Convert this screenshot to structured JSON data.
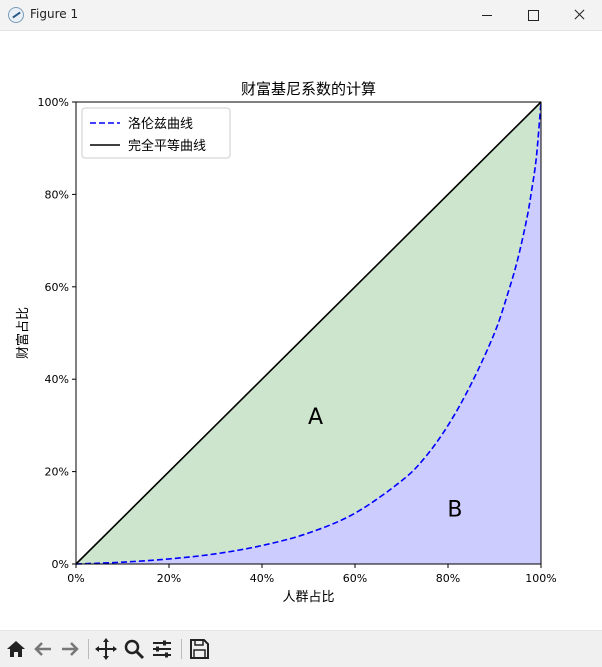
{
  "window": {
    "title": "Figure 1",
    "minimize_icon": "minimize-icon",
    "maximize_icon": "maximize-icon",
    "close_icon": "close-icon"
  },
  "toolbar": {
    "tools": [
      "home-icon",
      "back-arrow-icon",
      "forward-arrow-icon",
      "pan-icon",
      "zoom-icon",
      "configure-subplots-icon",
      "save-icon"
    ]
  },
  "colors": {
    "lorenz": "#0000ff",
    "equality": "#000000",
    "area_a": "#cce5cc",
    "area_b": "#ccccff"
  },
  "chart_data": {
    "type": "line",
    "title": "财富基尼系数的计算",
    "xlabel": "人群占比",
    "ylabel": "财富占比",
    "xlim": [
      0,
      1
    ],
    "ylim": [
      0,
      1
    ],
    "xticks": [
      "0%",
      "20%",
      "40%",
      "60%",
      "80%",
      "100%"
    ],
    "yticks": [
      "0%",
      "20%",
      "40%",
      "60%",
      "80%",
      "100%"
    ],
    "legend_position": "upper-left",
    "grid": false,
    "series": [
      {
        "name": "洛伦兹曲线",
        "style": "dashed",
        "x": [
          0,
          0.1,
          0.2,
          0.3,
          0.4,
          0.5,
          0.6,
          0.7,
          0.75,
          0.8,
          0.85,
          0.9,
          0.93,
          0.95,
          0.97,
          0.98,
          0.99,
          1.0
        ],
        "y": [
          0,
          0.004,
          0.011,
          0.022,
          0.04,
          0.067,
          0.11,
          0.18,
          0.23,
          0.3,
          0.39,
          0.5,
          0.59,
          0.66,
          0.75,
          0.81,
          0.88,
          1.0
        ]
      },
      {
        "name": "完全平等曲线",
        "style": "solid",
        "x": [
          0,
          1
        ],
        "y": [
          0,
          1
        ]
      }
    ],
    "annotations": [
      {
        "text": "A",
        "x": 0.515,
        "y": 0.32
      },
      {
        "text": "B",
        "x": 0.815,
        "y": 0.12
      }
    ]
  }
}
